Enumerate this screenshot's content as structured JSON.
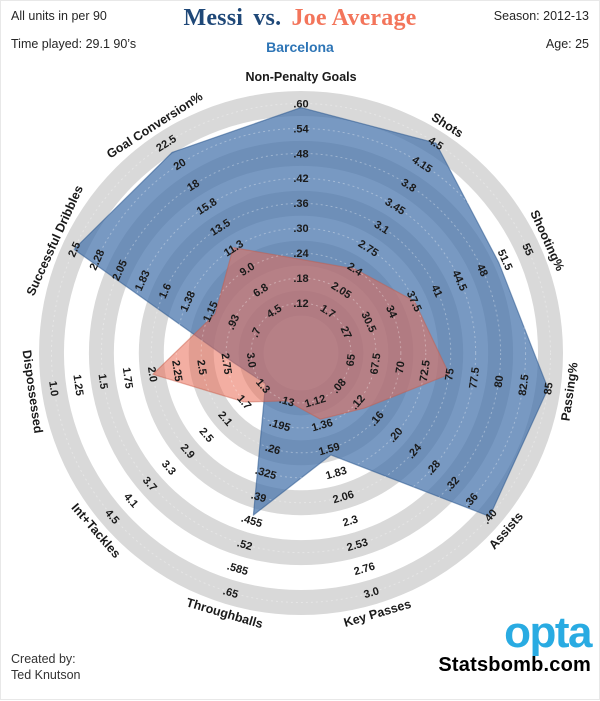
{
  "header": {
    "units_note": "All units in per 90",
    "time_played": "Time played: 29.1 90’s",
    "season": "Season: 2012-13",
    "age": "Age: 25",
    "title_messi": "Messi",
    "title_vs": "vs.",
    "title_joe": "Joe Average",
    "subtitle": "Barcelona"
  },
  "footer": {
    "created_by": "Created by:",
    "author": "Ted Knutson",
    "logo": "opta",
    "logo_color": "#29ABE2",
    "site": "Statsbomb.com"
  },
  "chart_data": {
    "type": "radar",
    "title": "Messi vs. Joe Average",
    "subtitle": "Barcelona",
    "num_rings": 9,
    "ring_color_a": "#D9D9D9",
    "ring_color_b": "#FFFFFF",
    "tick_font_color": "#1a1a1a",
    "axes": [
      {
        "label": "Non-Penalty Goals",
        "ticks": [
          ".12",
          ".18",
          ".24",
          ".30",
          ".36",
          ".42",
          ".48",
          ".54",
          ".60"
        ]
      },
      {
        "label": "Shots",
        "ticks": [
          "1.7",
          "2.05",
          "2.4",
          "2.75",
          "3.1",
          "3.45",
          "3.8",
          "4.15",
          "4.5"
        ]
      },
      {
        "label": "Shooting%",
        "ticks": [
          "27",
          "30.5",
          "34",
          "37.5",
          "41",
          "44.5",
          "48",
          "51.5",
          "55"
        ]
      },
      {
        "label": "Passing%",
        "ticks": [
          "65",
          "67.5",
          "70",
          "72.5",
          "75",
          "77.5",
          "80",
          "82.5",
          "85"
        ]
      },
      {
        "label": "Assists",
        "ticks": [
          ".08",
          ".12",
          ".16",
          ".20",
          ".24",
          ".28",
          ".32",
          ".36",
          ".40"
        ]
      },
      {
        "label": "Key Passes",
        "ticks": [
          "1.12",
          "1.36",
          "1.59",
          "1.83",
          "2.06",
          "2.3",
          "2.53",
          "2.76",
          "3.0"
        ]
      },
      {
        "label": "Throughballs",
        "ticks": [
          ".13",
          ".195",
          ".26",
          ".325",
          ".39",
          ".455",
          ".52",
          ".585",
          ".65"
        ]
      },
      {
        "label": "Int+Tackles",
        "ticks": [
          "1.3",
          "1.7",
          "2.1",
          "2.5",
          "2.9",
          "3.3",
          "3.7",
          "4.1",
          "4.5"
        ]
      },
      {
        "label": "Dispossessed",
        "ticks": [
          "3.0",
          "2.75",
          "2.5",
          "2.25",
          "2.0",
          "1.75",
          "1.5",
          "1.25",
          "1.0"
        ]
      },
      {
        "label": "Successful Dribbles",
        "ticks": [
          ".7",
          ".93",
          "1.15",
          "1.38",
          "1.6",
          "1.83",
          "2.05",
          "2.28",
          "2.5"
        ]
      },
      {
        "label": "Goal Conversion%",
        "ticks": [
          "4.5",
          "6.8",
          "9.0",
          "11.3",
          "13.5",
          "15.8",
          "18",
          "20",
          "22.5"
        ]
      }
    ],
    "series": [
      {
        "name": "Messi",
        "fill": "rgba(68,114,171,0.72)",
        "stroke": "rgba(46,90,143,0.55)",
        "values": [
          0.59,
          4.5,
          50.5,
          85,
          0.4,
          1.65,
          0.44,
          1.25,
          2.82,
          2.5,
          21.5
        ]
      },
      {
        "name": "Joe Average",
        "fill": "rgba(233,108,85,0.55)",
        "stroke": "rgba(200,90,72,0.45)",
        "values": [
          0.225,
          2.4,
          37.5,
          75,
          0.135,
          1.3,
          0.13,
          1.7,
          2.0,
          1.1,
          11.3
        ]
      }
    ]
  }
}
